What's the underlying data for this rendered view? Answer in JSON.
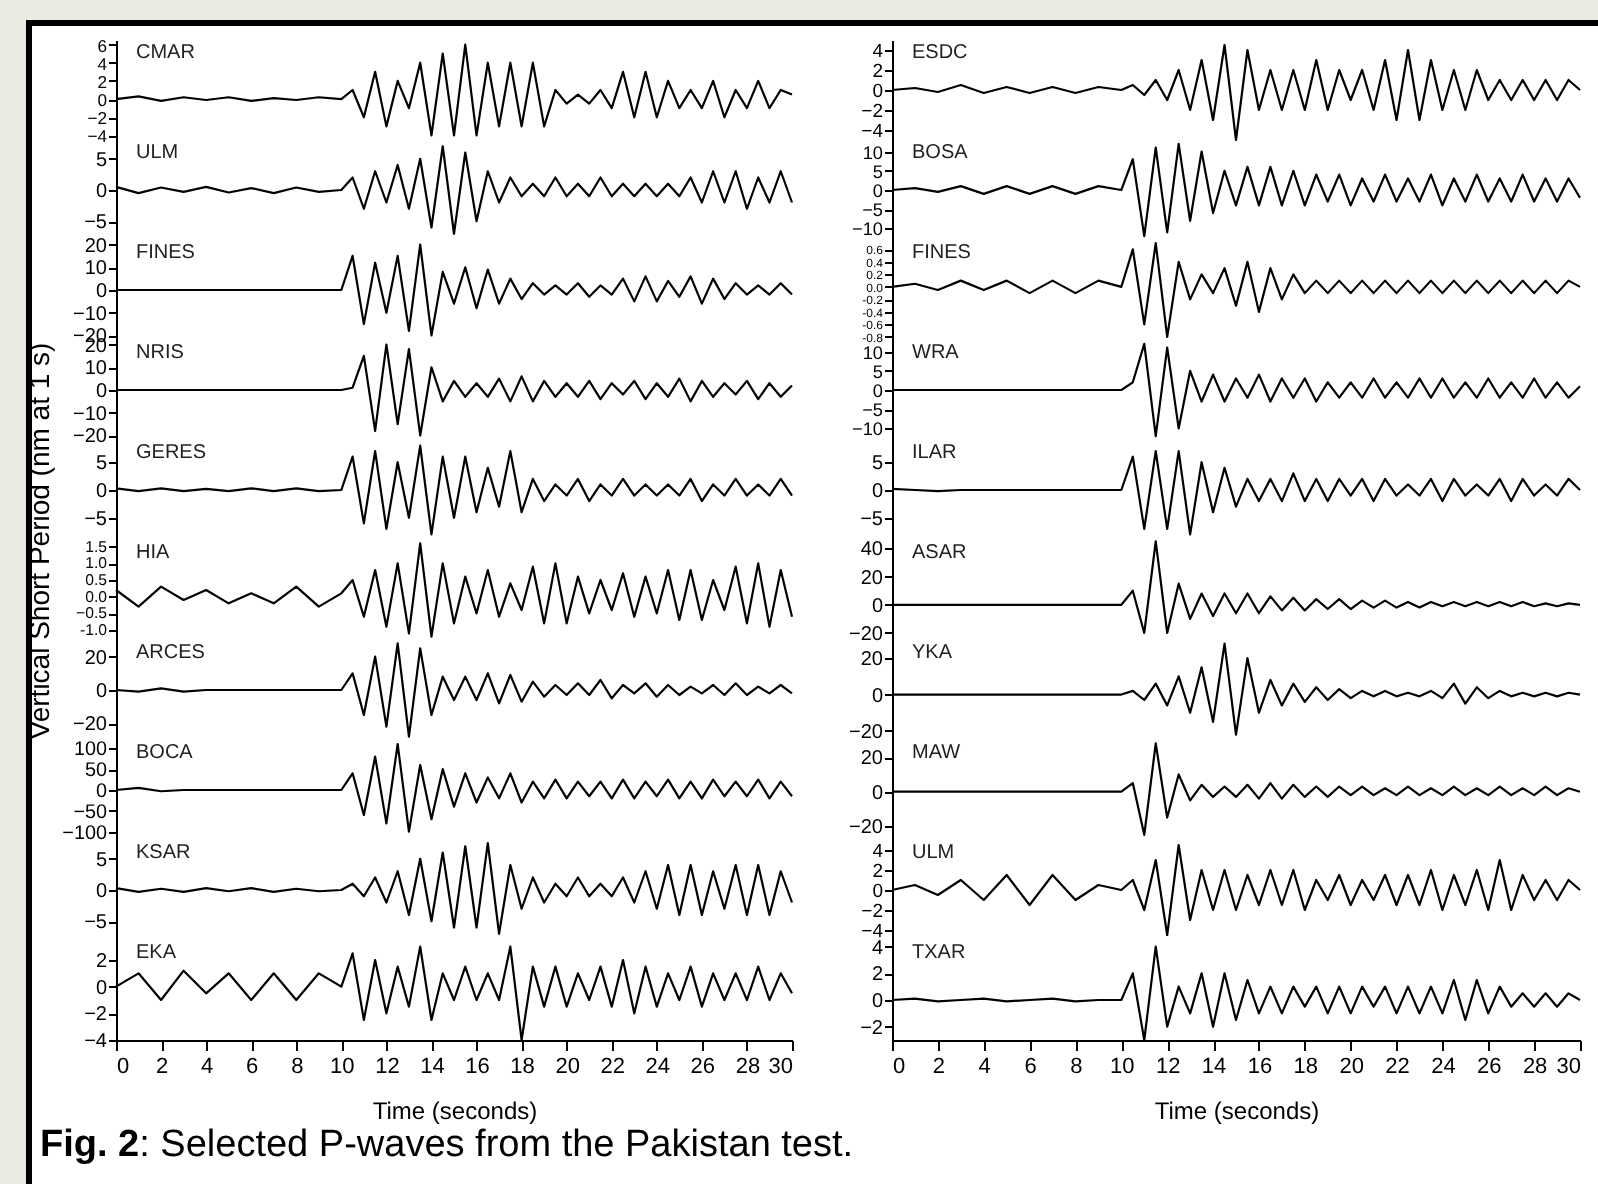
{
  "chart_data": [
    {
      "type": "line",
      "title": "CMAR",
      "x": [
        0,
        1,
        2,
        3,
        4,
        5,
        6,
        7,
        8,
        9,
        10,
        10.5,
        11,
        11.5,
        12,
        12.5,
        13,
        13.5,
        14,
        14.5,
        15,
        15.5,
        16,
        16.5,
        17,
        17.5,
        18,
        18.5,
        19,
        19.5,
        20,
        20.5,
        21,
        21.5,
        22,
        22.5,
        23,
        23.5,
        24,
        24.5,
        25,
        25.5,
        26,
        26.5,
        27,
        27.5,
        28,
        28.5,
        29,
        29.5,
        30
      ],
      "values": [
        0,
        0.3,
        -0.2,
        0.2,
        -0.1,
        0.2,
        -0.2,
        0.1,
        -0.1,
        0.2,
        0,
        1,
        -2,
        3,
        -3,
        2,
        -1,
        4,
        -4,
        5,
        -4,
        6,
        -4,
        4,
        -3,
        4,
        -3,
        4,
        -3,
        1,
        -0.5,
        0.5,
        -0.5,
        1,
        -1,
        3,
        -2,
        3,
        -2,
        2,
        -1,
        1,
        -1,
        2,
        -2,
        1,
        -1,
        2,
        -1,
        1,
        0.5
      ],
      "color": "#000000",
      "xlim": [
        0,
        30
      ],
      "ylim": [
        -4.5,
        6.5
      ],
      "yticks": [
        -4,
        -2,
        0,
        2,
        4,
        6
      ],
      "tick_labels": "y"
    },
    {
      "type": "line",
      "title": "ULM",
      "x": [
        0,
        1,
        2,
        3,
        4,
        5,
        6,
        7,
        8,
        9,
        10,
        10.5,
        11,
        11.5,
        12,
        12.5,
        13,
        13.5,
        14,
        14.5,
        15,
        15.5,
        16,
        16.5,
        17,
        17.5,
        18,
        18.5,
        19,
        19.5,
        20,
        20.5,
        21,
        21.5,
        22,
        22.5,
        23,
        23.5,
        24,
        24.5,
        25,
        25.5,
        26,
        26.5,
        27,
        27.5,
        28,
        28.5,
        29,
        29.5,
        30
      ],
      "values": [
        0.5,
        -0.5,
        0.4,
        -0.3,
        0.5,
        -0.4,
        0.3,
        -0.5,
        0.4,
        -0.3,
        0,
        2,
        -3,
        3,
        -2,
        4,
        -3,
        5,
        -6,
        7,
        -7,
        6,
        -5,
        3,
        -2,
        2,
        -1,
        1,
        -1,
        2,
        -1,
        1,
        -1,
        2,
        -1,
        1,
        -1,
        1,
        -1,
        1,
        -1,
        2,
        -2,
        3,
        -2,
        3,
        -3,
        2,
        -2,
        3,
        -2
      ],
      "color": "#000000",
      "xlim": [
        0,
        30
      ],
      "ylim": [
        -8,
        8
      ],
      "yticks": [
        -5,
        0,
        5
      ],
      "tick_labels": "y"
    },
    {
      "type": "line",
      "title": "FINES",
      "x": [
        0,
        1,
        2,
        3,
        4,
        5,
        6,
        7,
        8,
        9,
        10,
        10.5,
        11,
        11.5,
        12,
        12.5,
        13,
        13.5,
        14,
        14.5,
        15,
        15.5,
        16,
        16.5,
        17,
        17.5,
        18,
        18.5,
        19,
        19.5,
        20,
        20.5,
        21,
        21.5,
        22,
        22.5,
        23,
        23.5,
        24,
        24.5,
        25,
        25.5,
        26,
        26.5,
        27,
        27.5,
        28,
        28.5,
        29,
        29.5,
        30
      ],
      "values": [
        0,
        0,
        0,
        0,
        0,
        0,
        0,
        0,
        0,
        0,
        0,
        15,
        -15,
        12,
        -10,
        15,
        -18,
        20,
        -20,
        8,
        -6,
        10,
        -8,
        9,
        -6,
        5,
        -4,
        3,
        -2,
        2,
        -2,
        3,
        -3,
        2,
        -2,
        5,
        -5,
        6,
        -5,
        4,
        -3,
        6,
        -6,
        5,
        -4,
        3,
        -2,
        2,
        -2,
        3,
        -2
      ],
      "color": "#000000",
      "xlim": [
        0,
        30
      ],
      "ylim": [
        -22,
        22
      ],
      "yticks": [
        -20,
        -10,
        0,
        10,
        20
      ],
      "tick_labels": "y"
    },
    {
      "type": "line",
      "title": "NRIS",
      "x": [
        0,
        1,
        2,
        3,
        4,
        5,
        6,
        7,
        8,
        9,
        10,
        10.5,
        11,
        11.5,
        12,
        12.5,
        13,
        13.5,
        14,
        14.5,
        15,
        15.5,
        16,
        16.5,
        17,
        17.5,
        18,
        18.5,
        19,
        19.5,
        20,
        20.5,
        21,
        21.5,
        22,
        22.5,
        23,
        23.5,
        24,
        24.5,
        25,
        25.5,
        26,
        26.5,
        27,
        27.5,
        28,
        28.5,
        29,
        29.5,
        30
      ],
      "values": [
        0,
        0,
        0,
        0,
        0,
        0,
        0,
        0,
        0,
        0,
        0,
        1,
        15,
        -18,
        20,
        -15,
        18,
        -20,
        10,
        -5,
        4,
        -3,
        3,
        -3,
        5,
        -5,
        6,
        -5,
        4,
        -3,
        3,
        -3,
        4,
        -4,
        3,
        -2,
        4,
        -4,
        3,
        -3,
        5,
        -5,
        4,
        -3,
        3,
        -2,
        4,
        -4,
        3,
        -3,
        2
      ],
      "color": "#000000",
      "xlim": [
        0,
        30
      ],
      "ylim": [
        -22,
        22
      ],
      "yticks": [
        -20,
        -10,
        0,
        10,
        20
      ],
      "tick_labels": "y"
    },
    {
      "type": "line",
      "title": "GERES",
      "ylabel": "Vertical Short Period (nm at 1 s)",
      "x": [
        0,
        1,
        2,
        3,
        4,
        5,
        6,
        7,
        8,
        9,
        10,
        10.5,
        11,
        11.5,
        12,
        12.5,
        13,
        13.5,
        14,
        14.5,
        15,
        15.5,
        16,
        16.5,
        17,
        17.5,
        18,
        18.5,
        19,
        19.5,
        20,
        20.5,
        21,
        21.5,
        22,
        22.5,
        23,
        23.5,
        24,
        24.5,
        25,
        25.5,
        26,
        26.5,
        27,
        27.5,
        28,
        28.5,
        29,
        29.5,
        30
      ],
      "values": [
        0.3,
        -0.2,
        0.3,
        -0.2,
        0.2,
        -0.2,
        0.3,
        -0.2,
        0.3,
        -0.2,
        0,
        6,
        -6,
        7,
        -7,
        5,
        -5,
        8,
        -8,
        6,
        -5,
        6,
        -4,
        4,
        -3,
        7,
        -4,
        2,
        -2,
        1,
        -1,
        2,
        -2,
        1,
        -1,
        2,
        -1,
        1,
        -1,
        1,
        -1,
        2,
        -2,
        1,
        -1,
        2,
        -1,
        1,
        -1,
        2,
        -1
      ],
      "color": "#000000",
      "xlim": [
        0,
        30
      ],
      "ylim": [
        -9,
        9
      ],
      "yticks": [
        -5,
        0,
        5
      ],
      "tick_labels": "y"
    },
    {
      "type": "line",
      "title": "HIA",
      "x": [
        0,
        1,
        2,
        3,
        4,
        5,
        6,
        7,
        8,
        9,
        10,
        10.5,
        11,
        11.5,
        12,
        12.5,
        13,
        13.5,
        14,
        14.5,
        15,
        15.5,
        16,
        16.5,
        17,
        17.5,
        18,
        18.5,
        19,
        19.5,
        20,
        20.5,
        21,
        21.5,
        22,
        22.5,
        23,
        23.5,
        24,
        24.5,
        25,
        25.5,
        26,
        26.5,
        27,
        27.5,
        28,
        28.5,
        29,
        29.5,
        30
      ],
      "values": [
        0.2,
        -0.3,
        0.3,
        -0.1,
        0.2,
        -0.2,
        0.1,
        -0.2,
        0.3,
        -0.3,
        0.1,
        0.5,
        -0.6,
        0.8,
        -0.9,
        1.0,
        -1.1,
        1.6,
        -1.2,
        1.0,
        -0.8,
        0.6,
        -0.5,
        0.8,
        -0.6,
        0.4,
        -0.4,
        0.9,
        -0.8,
        1.0,
        -0.8,
        0.6,
        -0.5,
        0.5,
        -0.4,
        0.7,
        -0.6,
        0.6,
        -0.5,
        0.8,
        -0.7,
        0.8,
        -0.7,
        0.5,
        -0.4,
        0.9,
        -0.8,
        1.0,
        -0.9,
        0.8,
        -0.6
      ],
      "color": "#000000",
      "xlim": [
        0,
        30
      ],
      "ylim": [
        -1.3,
        1.7
      ],
      "yticks": [
        {
          "value": -1,
          "label": "-1.0"
        },
        -0.5,
        {
          "value": 0,
          "label": "0.0"
        },
        0.5,
        {
          "value": 1,
          "label": "1.0"
        },
        1.5
      ],
      "tick_labels": "y"
    },
    {
      "type": "line",
      "title": "ARCES",
      "x": [
        0,
        1,
        2,
        3,
        4,
        5,
        6,
        7,
        8,
        9,
        10,
        10.5,
        11,
        11.5,
        12,
        12.5,
        13,
        13.5,
        14,
        14.5,
        15,
        15.5,
        16,
        16.5,
        17,
        17.5,
        18,
        18.5,
        19,
        19.5,
        20,
        20.5,
        21,
        21.5,
        22,
        22.5,
        23,
        23.5,
        24,
        24.5,
        25,
        25.5,
        26,
        26.5,
        27,
        27.5,
        28,
        28.5,
        29,
        29.5,
        30
      ],
      "values": [
        0,
        -1,
        1,
        -1,
        0,
        0,
        0,
        0,
        0,
        0,
        0,
        10,
        -15,
        20,
        -22,
        28,
        -28,
        25,
        -15,
        8,
        -6,
        8,
        -6,
        10,
        -8,
        9,
        -7,
        5,
        -4,
        3,
        -3,
        4,
        -3,
        6,
        -5,
        3,
        -2,
        4,
        -4,
        3,
        -3,
        2,
        -2,
        3,
        -3,
        4,
        -3,
        2,
        -2,
        3,
        -2
      ],
      "color": "#000000",
      "xlim": [
        0,
        30
      ],
      "ylim": [
        -30,
        30
      ],
      "yticks": [
        -20,
        0,
        20
      ],
      "tick_labels": "y"
    },
    {
      "type": "line",
      "title": "BOCA",
      "x": [
        0,
        1,
        2,
        3,
        4,
        5,
        6,
        7,
        8,
        9,
        10,
        10.5,
        11,
        11.5,
        12,
        12.5,
        13,
        13.5,
        14,
        14.5,
        15,
        15.5,
        16,
        16.5,
        17,
        17.5,
        18,
        18.5,
        19,
        19.5,
        20,
        20.5,
        21,
        21.5,
        22,
        22.5,
        23,
        23.5,
        24,
        24.5,
        25,
        25.5,
        26,
        26.5,
        27,
        27.5,
        28,
        28.5,
        29,
        29.5,
        30
      ],
      "values": [
        0,
        5,
        -3,
        0,
        0,
        0,
        0,
        0,
        0,
        0,
        0,
        40,
        -60,
        80,
        -80,
        110,
        -100,
        60,
        -70,
        50,
        -40,
        40,
        -30,
        30,
        -20,
        40,
        -30,
        20,
        -20,
        25,
        -20,
        20,
        -15,
        20,
        -20,
        25,
        -20,
        20,
        -15,
        25,
        -20,
        20,
        -20,
        25,
        -15,
        20,
        -15,
        25,
        -20,
        20,
        -15
      ],
      "color": "#000000",
      "xlim": [
        0,
        30
      ],
      "ylim": [
        -120,
        120
      ],
      "yticks": [
        -100,
        -50,
        0,
        50,
        100
      ],
      "tick_labels": "y"
    },
    {
      "type": "line",
      "title": "KSAR",
      "x": [
        0,
        1,
        2,
        3,
        4,
        5,
        6,
        7,
        8,
        9,
        10,
        10.5,
        11,
        11.5,
        12,
        12.5,
        13,
        13.5,
        14,
        14.5,
        15,
        15.5,
        16,
        16.5,
        17,
        17.5,
        18,
        18.5,
        19,
        19.5,
        20,
        20.5,
        21,
        21.5,
        22,
        22.5,
        23,
        23.5,
        24,
        24.5,
        25,
        25.5,
        26,
        26.5,
        27,
        27.5,
        28,
        28.5,
        29,
        29.5,
        30
      ],
      "values": [
        0.3,
        -0.3,
        0.2,
        -0.3,
        0.3,
        -0.2,
        0.3,
        -0.3,
        0.2,
        -0.2,
        0,
        1,
        -1,
        2,
        -2,
        3,
        -4,
        5,
        -5,
        6,
        -6,
        7,
        -6,
        7.5,
        -7,
        4,
        -3,
        2,
        -2,
        1,
        -1,
        2,
        -1,
        1,
        -1,
        2,
        -2,
        3,
        -3,
        4,
        -4,
        4,
        -4,
        3,
        -3,
        4,
        -4,
        4,
        -4,
        3,
        -2
      ],
      "color": "#000000",
      "xlim": [
        0,
        30
      ],
      "ylim": [
        -8,
        8
      ],
      "yticks": [
        -5,
        0,
        5
      ],
      "tick_labels": "y"
    },
    {
      "type": "line",
      "title": "EKA",
      "xlabel": "Time (seconds)",
      "annotations": [
        "Fig. 2: Selected P-waves from the Pakistan test."
      ],
      "x": [
        0,
        1,
        2,
        3,
        4,
        5,
        6,
        7,
        8,
        9,
        10,
        10.5,
        11,
        11.5,
        12,
        12.5,
        13,
        13.5,
        14,
        14.5,
        15,
        15.5,
        16,
        16.5,
        17,
        17.5,
        18,
        18.5,
        19,
        19.5,
        20,
        20.5,
        21,
        21.5,
        22,
        22.5,
        23,
        23.5,
        24,
        24.5,
        25,
        25.5,
        26,
        26.5,
        27,
        27.5,
        28,
        28.5,
        29,
        29.5,
        30
      ],
      "values": [
        0,
        1,
        -1,
        1.2,
        -0.5,
        1,
        -1,
        1,
        -1,
        1,
        0,
        2.5,
        -2.5,
        2,
        -2,
        1.5,
        -1.5,
        3,
        -2.5,
        1,
        -1,
        1.5,
        -1,
        1,
        -1,
        3,
        -4,
        1.5,
        -1.5,
        1.5,
        -1.5,
        1,
        -1,
        1.5,
        -1.5,
        2,
        -2,
        1.5,
        -1.5,
        1,
        -1,
        1.5,
        -1.5,
        1,
        -1,
        1,
        -1,
        1.5,
        -1,
        1,
        -0.5
      ],
      "color": "#000000",
      "xlim": [
        0,
        30
      ],
      "xticks": [
        0,
        2,
        4,
        6,
        8,
        10,
        12,
        14,
        16,
        18,
        20,
        22,
        24,
        26,
        28,
        30
      ],
      "ylim": [
        -4,
        3.5
      ],
      "yticks": [
        -4,
        -2,
        0,
        2
      ]
    },
    {
      "type": "line",
      "title": "ESDC",
      "x": [
        0,
        1,
        2,
        3,
        4,
        5,
        6,
        7,
        8,
        9,
        10,
        10.5,
        11,
        11.5,
        12,
        12.5,
        13,
        13.5,
        14,
        14.5,
        15,
        15.5,
        16,
        16.5,
        17,
        17.5,
        18,
        18.5,
        19,
        19.5,
        20,
        20.5,
        21,
        21.5,
        22,
        22.5,
        23,
        23.5,
        24,
        24.5,
        25,
        25.5,
        26,
        26.5,
        27,
        27.5,
        28,
        28.5,
        29,
        29.5,
        30
      ],
      "values": [
        0,
        0.2,
        -0.2,
        0.5,
        -0.3,
        0.3,
        -0.3,
        0.3,
        -0.3,
        0.3,
        0,
        0.5,
        -0.5,
        1,
        -1,
        2,
        -2,
        3,
        -3,
        4.5,
        -5,
        4,
        -2,
        2,
        -2,
        2,
        -2,
        3,
        -2,
        2,
        -1,
        2,
        -2,
        3,
        -3,
        4,
        -3,
        3,
        -2,
        2,
        -2,
        2,
        -1,
        1,
        -1,
        1,
        -1,
        1,
        -1,
        1,
        0
      ],
      "color": "#000000",
      "xlim": [
        0,
        30
      ],
      "ylim": [
        -5,
        5
      ],
      "yticks": [
        -4,
        -2,
        0,
        2,
        4
      ],
      "tick_labels": "y"
    },
    {
      "type": "line",
      "title": "BOSA",
      "x": [
        0,
        1,
        2,
        3,
        4,
        5,
        6,
        7,
        8,
        9,
        10,
        10.5,
        11,
        11.5,
        12,
        12.5,
        13,
        13.5,
        14,
        14.5,
        15,
        15.5,
        16,
        16.5,
        17,
        17.5,
        18,
        18.5,
        19,
        19.5,
        20,
        20.5,
        21,
        21.5,
        22,
        22.5,
        23,
        23.5,
        24,
        24.5,
        25,
        25.5,
        26,
        26.5,
        27,
        27.5,
        28,
        28.5,
        29,
        29.5,
        30
      ],
      "values": [
        0,
        0.5,
        -0.5,
        1,
        -1,
        1,
        -1,
        1,
        -1,
        1,
        0,
        8,
        -12,
        11,
        -11,
        12,
        -8,
        10,
        -6,
        5,
        -4,
        6,
        -4,
        6,
        -4,
        5,
        -4,
        4,
        -3,
        4,
        -4,
        3,
        -3,
        4,
        -3,
        3,
        -3,
        4,
        -4,
        3,
        -3,
        4,
        -3,
        3,
        -3,
        4,
        -3,
        3,
        -3,
        3,
        -2
      ],
      "color": "#000000",
      "xlim": [
        0,
        30
      ],
      "ylim": [
        -13,
        13
      ],
      "yticks": [
        -10,
        -5,
        0,
        5,
        10
      ],
      "tick_labels": "y"
    },
    {
      "type": "line",
      "title": "FINES",
      "x": [
        0,
        1,
        2,
        3,
        4,
        5,
        6,
        7,
        8,
        9,
        10,
        10.5,
        11,
        11.5,
        12,
        12.5,
        13,
        13.5,
        14,
        14.5,
        15,
        15.5,
        16,
        16.5,
        17,
        17.5,
        18,
        18.5,
        19,
        19.5,
        20,
        20.5,
        21,
        21.5,
        22,
        22.5,
        23,
        23.5,
        24,
        24.5,
        25,
        25.5,
        26,
        26.5,
        27,
        27.5,
        28,
        28.5,
        29,
        29.5,
        30
      ],
      "values": [
        0,
        0.05,
        -0.05,
        0.1,
        -0.05,
        0.1,
        -0.1,
        0.1,
        -0.1,
        0.1,
        0,
        0.6,
        -0.6,
        0.7,
        -0.8,
        0.4,
        -0.2,
        0.2,
        -0.1,
        0.3,
        -0.3,
        0.4,
        -0.4,
        0.3,
        -0.2,
        0.2,
        -0.1,
        0.1,
        -0.1,
        0.1,
        -0.1,
        0.1,
        -0.1,
        0.1,
        -0.1,
        0.1,
        -0.1,
        0.1,
        -0.1,
        0.1,
        -0.1,
        0.1,
        -0.1,
        0.1,
        -0.1,
        0.1,
        -0.1,
        0.1,
        -0.1,
        0.1,
        0
      ],
      "color": "#000000",
      "xlim": [
        0,
        30
      ],
      "ylim": [
        -0.85,
        0.75
      ],
      "yticks": [
        {
          "value": -0.8,
          "label": "-0.8"
        },
        {
          "value": -0.6,
          "label": "-0.6"
        },
        {
          "value": -0.4,
          "label": "-0.4"
        },
        {
          "value": -0.2,
          "label": "-0.2"
        },
        {
          "value": 0,
          "label": "0.0"
        },
        0.2,
        0.4,
        0.6
      ],
      "tick_labels": "y"
    },
    {
      "type": "line",
      "title": "WRA",
      "x": [
        0,
        1,
        2,
        3,
        4,
        5,
        6,
        7,
        8,
        9,
        10,
        10.5,
        11,
        11.5,
        12,
        12.5,
        13,
        13.5,
        14,
        14.5,
        15,
        15.5,
        16,
        16.5,
        17,
        17.5,
        18,
        18.5,
        19,
        19.5,
        20,
        20.5,
        21,
        21.5,
        22,
        22.5,
        23,
        23.5,
        24,
        24.5,
        25,
        25.5,
        26,
        26.5,
        27,
        27.5,
        28,
        28.5,
        29,
        29.5,
        30
      ],
      "values": [
        0,
        0,
        0,
        0,
        0,
        0,
        0,
        0,
        0,
        0,
        0,
        2,
        12,
        -12,
        11,
        -10,
        5,
        -3,
        4,
        -3,
        3,
        -2,
        4,
        -3,
        3,
        -2,
        3,
        -3,
        2,
        -2,
        2,
        -2,
        3,
        -2,
        2,
        -2,
        3,
        -2,
        3,
        -2,
        2,
        -2,
        3,
        -2,
        2,
        -2,
        3,
        -2,
        2,
        -2,
        1
      ],
      "color": "#000000",
      "xlim": [
        0,
        30
      ],
      "ylim": [
        -13,
        13
      ],
      "yticks": [
        -10,
        -5,
        0,
        5,
        10
      ],
      "tick_labels": "y"
    },
    {
      "type": "line",
      "title": "ILAR",
      "x": [
        0,
        1,
        2,
        3,
        4,
        5,
        6,
        7,
        8,
        9,
        10,
        10.5,
        11,
        11.5,
        12,
        12.5,
        13,
        13.5,
        14,
        14.5,
        15,
        15.5,
        16,
        16.5,
        17,
        17.5,
        18,
        18.5,
        19,
        19.5,
        20,
        20.5,
        21,
        21.5,
        22,
        22.5,
        23,
        23.5,
        24,
        24.5,
        25,
        25.5,
        26,
        26.5,
        27,
        27.5,
        28,
        28.5,
        29,
        29.5,
        30
      ],
      "values": [
        0.2,
        0,
        -0.2,
        0,
        0,
        0,
        0,
        0,
        0,
        0,
        0,
        6,
        -7,
        7,
        -7,
        7,
        -8,
        5,
        -4,
        4,
        -3,
        2,
        -2,
        2,
        -2,
        3,
        -2,
        2,
        -2,
        2,
        -1,
        2,
        -2,
        2,
        -1,
        1,
        -1,
        2,
        -2,
        2,
        -1,
        1,
        -1,
        2,
        -2,
        2,
        -1,
        1,
        -1,
        2,
        0
      ],
      "color": "#000000",
      "xlim": [
        0,
        30
      ],
      "ylim": [
        -9,
        9
      ],
      "yticks": [
        -5,
        0,
        5
      ],
      "tick_labels": "y"
    },
    {
      "type": "line",
      "title": "ASAR",
      "x": [
        0,
        1,
        2,
        3,
        4,
        5,
        6,
        7,
        8,
        9,
        10,
        10.5,
        11,
        11.5,
        12,
        12.5,
        13,
        13.5,
        14,
        14.5,
        15,
        15.5,
        16,
        16.5,
        17,
        17.5,
        18,
        18.5,
        19,
        19.5,
        20,
        20.5,
        21,
        21.5,
        22,
        22.5,
        23,
        23.5,
        24,
        24.5,
        25,
        25.5,
        26,
        26.5,
        27,
        27.5,
        28,
        28.5,
        29,
        29.5,
        30
      ],
      "values": [
        0,
        0,
        0,
        0,
        0,
        0,
        0,
        0,
        0,
        0,
        0,
        10,
        -20,
        45,
        -20,
        15,
        -10,
        8,
        -8,
        8,
        -6,
        8,
        -6,
        6,
        -4,
        5,
        -4,
        4,
        -3,
        4,
        -3,
        3,
        -2,
        3,
        -2,
        2,
        -2,
        2,
        -1,
        2,
        -1,
        2,
        -1,
        2,
        -1,
        2,
        -1,
        1,
        -1,
        1,
        0
      ],
      "color": "#000000",
      "xlim": [
        0,
        30
      ],
      "ylim": [
        -25,
        46
      ],
      "yticks": [
        -20,
        0,
        20,
        40
      ],
      "tick_labels": "y"
    },
    {
      "type": "line",
      "title": "YKA",
      "x": [
        0,
        1,
        2,
        3,
        4,
        5,
        6,
        7,
        8,
        9,
        10,
        10.5,
        11,
        11.5,
        12,
        12.5,
        13,
        13.5,
        14,
        14.5,
        15,
        15.5,
        16,
        16.5,
        17,
        17.5,
        18,
        18.5,
        19,
        19.5,
        20,
        20.5,
        21,
        21.5,
        22,
        22.5,
        23,
        23.5,
        24,
        24.5,
        25,
        25.5,
        26,
        26.5,
        27,
        27.5,
        28,
        28.5,
        29,
        29.5,
        30
      ],
      "values": [
        0,
        0,
        0,
        0,
        0,
        0,
        0,
        0,
        0,
        0,
        0,
        2,
        -3,
        6,
        -6,
        10,
        -10,
        15,
        -15,
        28,
        -22,
        20,
        -10,
        8,
        -6,
        6,
        -4,
        4,
        -3,
        3,
        -2,
        2,
        -1,
        2,
        -1,
        1,
        -1,
        2,
        -2,
        6,
        -5,
        4,
        -2,
        2,
        -1,
        1,
        -1,
        1,
        -1,
        1,
        0
      ],
      "color": "#000000",
      "xlim": [
        0,
        30
      ],
      "ylim": [
        -25,
        30
      ],
      "yticks": [
        -20,
        0,
        20
      ],
      "tick_labels": "y"
    },
    {
      "type": "line",
      "title": "MAW",
      "x": [
        0,
        1,
        2,
        3,
        4,
        5,
        6,
        7,
        8,
        9,
        10,
        10.5,
        11,
        11.5,
        12,
        12.5,
        13,
        13.5,
        14,
        14.5,
        15,
        15.5,
        16,
        16.5,
        17,
        17.5,
        18,
        18.5,
        19,
        19.5,
        20,
        20.5,
        21,
        21.5,
        22,
        22.5,
        23,
        23.5,
        24,
        24.5,
        25,
        25.5,
        26,
        26.5,
        27,
        27.5,
        28,
        28.5,
        29,
        29.5,
        30
      ],
      "values": [
        0,
        0,
        0,
        0,
        0,
        0,
        0,
        0,
        0,
        0,
        0,
        5,
        -25,
        28,
        -15,
        10,
        -5,
        4,
        -3,
        3,
        -3,
        4,
        -4,
        5,
        -4,
        4,
        -3,
        3,
        -3,
        3,
        -2,
        3,
        -2,
        2,
        -2,
        3,
        -2,
        2,
        -2,
        3,
        -2,
        2,
        -2,
        3,
        -2,
        2,
        -2,
        3,
        -2,
        2,
        0
      ],
      "color": "#000000",
      "xlim": [
        0,
        30
      ],
      "ylim": [
        -28,
        30
      ],
      "yticks": [
        -20,
        0,
        20
      ],
      "tick_labels": "y"
    },
    {
      "type": "line",
      "title": "ULM",
      "x": [
        0,
        1,
        2,
        3,
        4,
        5,
        6,
        7,
        8,
        9,
        10,
        10.5,
        11,
        11.5,
        12,
        12.5,
        13,
        13.5,
        14,
        14.5,
        15,
        15.5,
        16,
        16.5,
        17,
        17.5,
        18,
        18.5,
        19,
        19.5,
        20,
        20.5,
        21,
        21.5,
        22,
        22.5,
        23,
        23.5,
        24,
        24.5,
        25,
        25.5,
        26,
        26.5,
        27,
        27.5,
        28,
        28.5,
        29,
        29.5,
        30
      ],
      "values": [
        0,
        0.5,
        -0.5,
        1,
        -1,
        1.5,
        -1.5,
        1.5,
        -1,
        0.5,
        0,
        1,
        -2,
        3,
        -4.5,
        4.5,
        -3,
        2,
        -2,
        2,
        -2,
        1.5,
        -1.5,
        2,
        -1.5,
        2,
        -2,
        1,
        -1,
        1.5,
        -1.5,
        1,
        -1,
        1.5,
        -1.5,
        1.5,
        -1.5,
        2,
        -2,
        1.5,
        -1.5,
        2,
        -2,
        3,
        -2,
        1.5,
        -1,
        1,
        -1,
        1,
        0
      ],
      "color": "#000000",
      "xlim": [
        0,
        30
      ],
      "ylim": [
        -5,
        5
      ],
      "yticks": [
        -4,
        -2,
        0,
        2,
        4
      ],
      "tick_labels": "y"
    },
    {
      "type": "line",
      "title": "TXAR",
      "xlabel": "Time (seconds)",
      "x": [
        0,
        1,
        2,
        3,
        4,
        5,
        6,
        7,
        8,
        9,
        10,
        10.5,
        11,
        11.5,
        12,
        12.5,
        13,
        13.5,
        14,
        14.5,
        15,
        15.5,
        16,
        16.5,
        17,
        17.5,
        18,
        18.5,
        19,
        19.5,
        20,
        20.5,
        21,
        21.5,
        22,
        22.5,
        23,
        23.5,
        24,
        24.5,
        25,
        25.5,
        26,
        26.5,
        27,
        27.5,
        28,
        28.5,
        29,
        29.5,
        30
      ],
      "values": [
        0,
        0.1,
        -0.1,
        0,
        0.1,
        -0.1,
        0,
        0.1,
        -0.1,
        0,
        0,
        2,
        -3,
        4,
        -2,
        1,
        -1,
        2,
        -2,
        2,
        -1.5,
        1.5,
        -1,
        1,
        -1,
        1,
        -0.5,
        1,
        -1,
        1,
        -1,
        1,
        -0.5,
        1,
        -1,
        1,
        -1,
        1,
        -1,
        1.5,
        -1.5,
        1.5,
        -1,
        1,
        -0.5,
        0.5,
        -0.5,
        0.5,
        -0.5,
        0.5,
        0
      ],
      "color": "#000000",
      "xlim": [
        0,
        30
      ],
      "xticks": [
        0,
        2,
        4,
        6,
        8,
        10,
        12,
        14,
        16,
        18,
        20,
        22,
        24,
        26,
        28,
        30
      ],
      "ylim": [
        -3,
        4.5
      ],
      "yticks": [
        -2,
        0,
        2,
        4
      ]
    }
  ]
}
